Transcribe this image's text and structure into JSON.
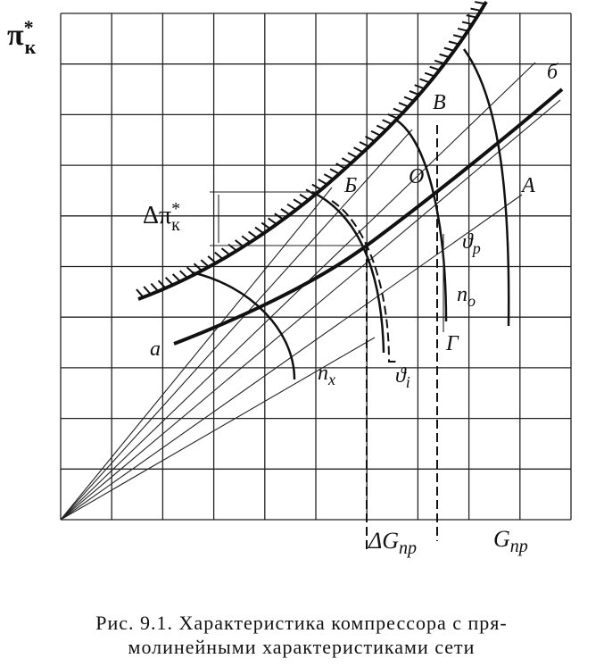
{
  "figure": {
    "axis_y_label": {
      "main": "π",
      "sup": "*",
      "sub": "к"
    },
    "axis_x_label": {
      "main": "G",
      "sub": "пр"
    },
    "delta_g_label": {
      "main": "ΔG",
      "sub": "пр"
    },
    "delta_pi_label": {
      "main": "Δπ",
      "sup": "*",
      "sub": "к"
    },
    "point_labels": {
      "b_small": "б",
      "v": "В",
      "b": "Б",
      "o": "О",
      "a_cap": "А",
      "a_small": "а",
      "g": "Г"
    },
    "curve_labels": {
      "theta_p": {
        "main": "ϑ",
        "sub": "р"
      },
      "n_o": {
        "main": "n",
        "sub": "о"
      },
      "n_x": {
        "main": "n",
        "sub": "х"
      },
      "theta_i": {
        "main": "ϑ",
        "sub": "i"
      }
    },
    "caption": [
      "Рис. 9.1. Характеристика компрессора с пря-",
      "молинейными характеристиками сети"
    ]
  }
}
